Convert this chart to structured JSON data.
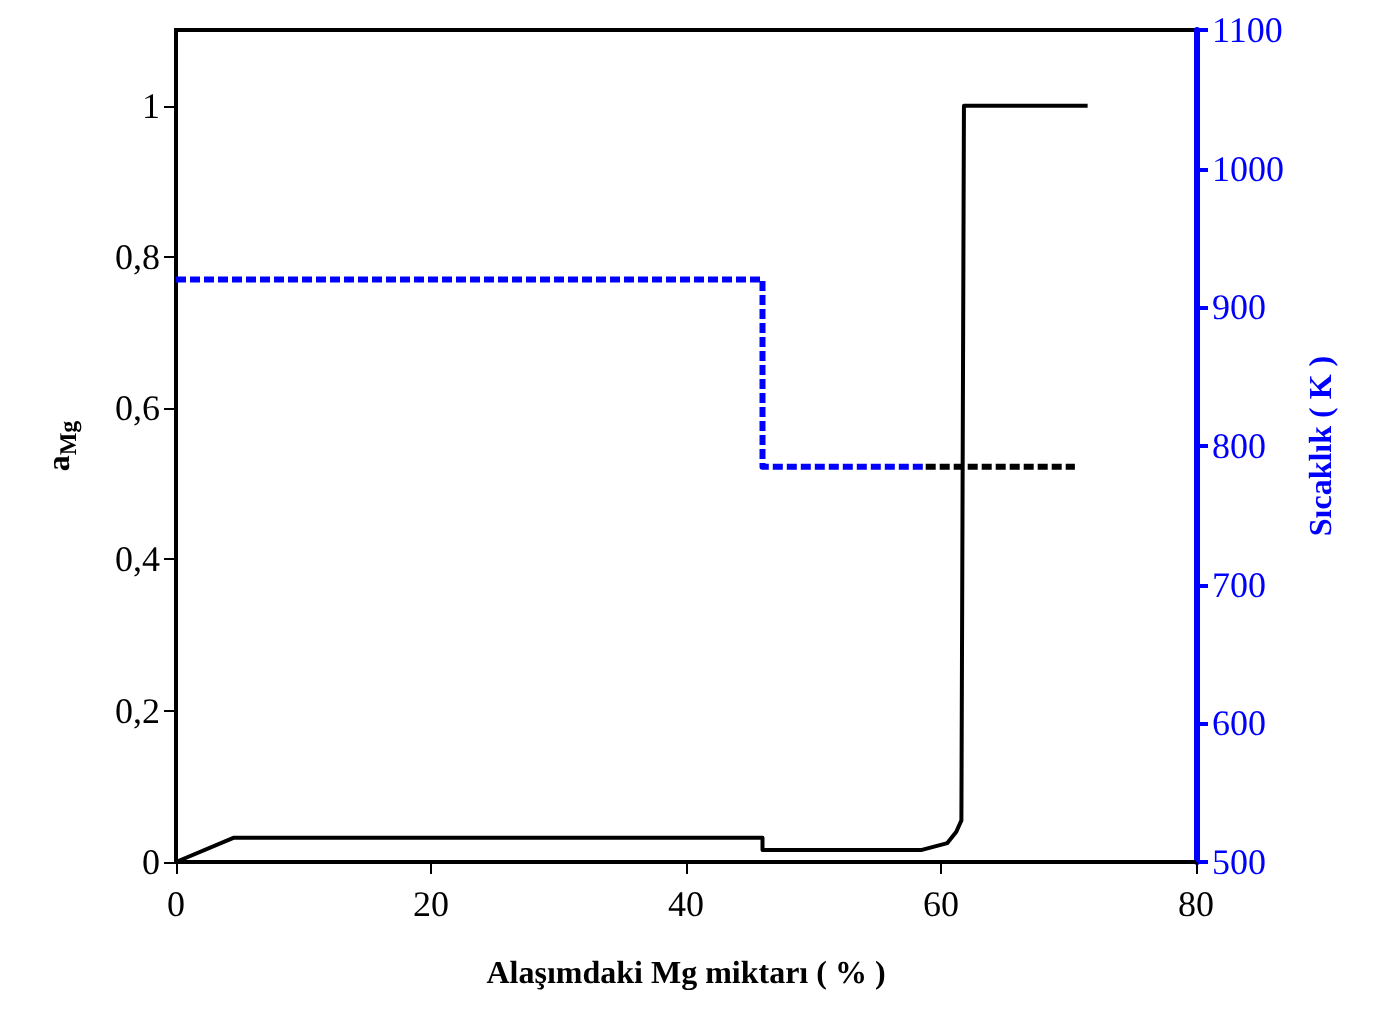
{
  "chart_data": {
    "type": "line",
    "xlabel": "Alaşımdaki Mg miktarı ( % )",
    "ylabel": "a$_{Mg}$",
    "y2label": "Sıcaklık ( K )",
    "xlim": [
      0,
      80
    ],
    "xticks": [
      0,
      20,
      40,
      60,
      80
    ],
    "ylim": [
      0,
      1.1
    ],
    "yticks": [
      0,
      {
        "value": 0.2,
        "label": "0,2"
      },
      {
        "value": 0.4,
        "label": "0,4"
      },
      {
        "value": 0.6,
        "label": "0,6"
      },
      {
        "value": 0.8,
        "label": "0,8"
      },
      1
    ],
    "y2lim": [
      500,
      1100
    ],
    "y2ticks": [
      500,
      600,
      700,
      800,
      900,
      1000,
      1100
    ],
    "grid": false,
    "marker": "none",
    "series": [
      {
        "color": "#000000",
        "line_style": "solid",
        "x": [
          0,
          4.5,
          46,
          46,
          58.5,
          60.5,
          61.2,
          61.6,
          61.8,
          71.5
        ],
        "values": [
          0,
          0.032,
          0.032,
          0.016,
          0.016,
          0.025,
          0.04,
          0.055,
          1,
          1
        ]
      },
      {
        "color": "#0000ff",
        "line_style": "dashed",
        "axis": "y2",
        "x": [
          0,
          46,
          46,
          58.8
        ],
        "values": [
          920,
          920,
          785,
          785
        ]
      },
      {
        "color": "#000000",
        "line_style": "dashed",
        "axis": "y2",
        "x": [
          58.8,
          70.5
        ],
        "values": [
          785,
          785
        ]
      }
    ]
  }
}
